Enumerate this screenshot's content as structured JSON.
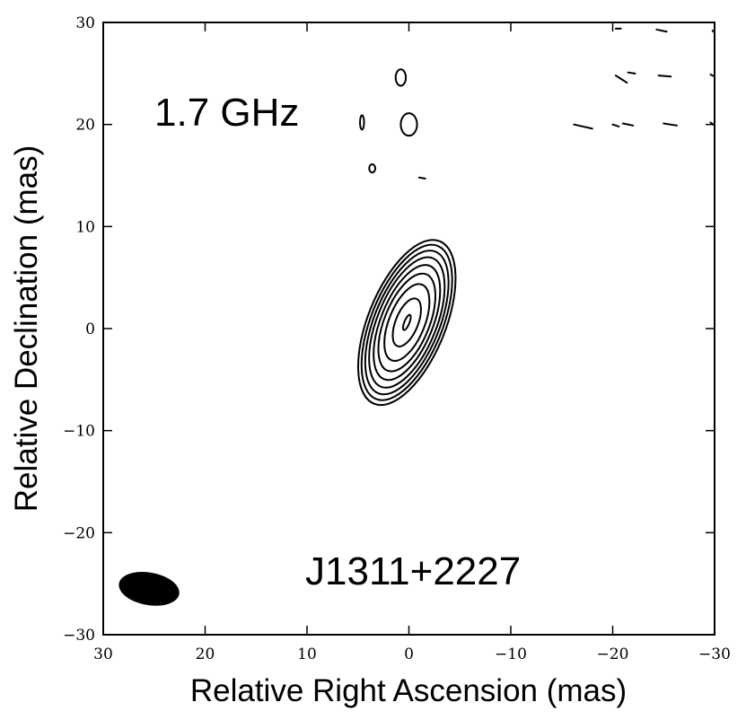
{
  "chart_data": {
    "type": "contour",
    "annotations": {
      "frequency": "1.7 GHz",
      "source": "J1311+2227"
    },
    "xlabel": "Relative Right Ascension (mas)",
    "ylabel": "Relative Declination (mas)",
    "xlim": [
      30,
      -30
    ],
    "ylim": [
      -30,
      30
    ],
    "x_ticks": [
      30,
      20,
      10,
      0,
      -10,
      -20,
      -30
    ],
    "y_ticks": [
      30,
      20,
      10,
      0,
      -10,
      -20,
      -30
    ],
    "x_tick_labels": [
      "30",
      "20",
      "10",
      "0",
      "−10",
      "−20",
      "−30"
    ],
    "y_tick_labels": [
      "30",
      "20",
      "10",
      "0",
      "−10",
      "−20",
      "−30"
    ],
    "grid": false,
    "beam": {
      "center": [
        25.5,
        -25.5
      ],
      "major_axis_mas": 6,
      "minor_axis_mas": 3.2,
      "position_angle_deg": 80
    },
    "source_contours": {
      "center": [
        0.2,
        0.6
      ],
      "position_angle_deg": -68,
      "levels": [
        {
          "a": 8.6,
          "b": 3.8
        },
        {
          "a": 8.1,
          "b": 3.5
        },
        {
          "a": 7.5,
          "b": 3.2
        },
        {
          "a": 6.8,
          "b": 2.9
        },
        {
          "a": 6.0,
          "b": 2.55
        },
        {
          "a": 5.1,
          "b": 2.2
        },
        {
          "a": 4.0,
          "b": 1.75
        },
        {
          "a": 2.5,
          "b": 1.1
        },
        {
          "a": 0.8,
          "b": 0.25
        }
      ]
    },
    "noise_features": [
      {
        "x": 0.8,
        "y": 24.6,
        "rx": 0.5,
        "ry": 0.8
      },
      {
        "x": 4.6,
        "y": 20.2,
        "rx": 0.2,
        "ry": 0.7
      },
      {
        "x": 0.0,
        "y": 20.0,
        "rx": 0.8,
        "ry": 1.1
      },
      {
        "x": 3.6,
        "y": 15.7,
        "rx": 0.3,
        "ry": 0.4
      }
    ],
    "noise_dashes": [
      [
        [
          -1.0,
          14.8
        ],
        [
          -1.6,
          14.7
        ]
      ],
      [
        [
          -20.3,
          29.4
        ],
        [
          -20.8,
          29.4
        ]
      ],
      [
        [
          -24.3,
          29.3
        ],
        [
          -25.3,
          29.1
        ]
      ],
      [
        [
          -29.8,
          29.2
        ],
        [
          -30.0,
          29.0
        ]
      ],
      [
        [
          -20.3,
          24.8
        ],
        [
          -21.4,
          24.1
        ]
      ],
      [
        [
          -21.5,
          25.1
        ],
        [
          -22.2,
          25.0
        ]
      ],
      [
        [
          -24.5,
          24.8
        ],
        [
          -25.7,
          24.7
        ]
      ],
      [
        [
          -29.6,
          24.9
        ],
        [
          -30.0,
          24.7
        ]
      ],
      [
        [
          -16.2,
          20.0
        ],
        [
          -18.0,
          19.6
        ]
      ],
      [
        [
          -20.0,
          20.0
        ],
        [
          -20.6,
          19.8
        ]
      ],
      [
        [
          -21.0,
          20.1
        ],
        [
          -22.0,
          19.9
        ]
      ],
      [
        [
          -25.0,
          20.1
        ],
        [
          -26.3,
          19.9
        ]
      ],
      [
        [
          -29.6,
          20.2
        ],
        [
          -30.0,
          19.9
        ]
      ]
    ]
  }
}
